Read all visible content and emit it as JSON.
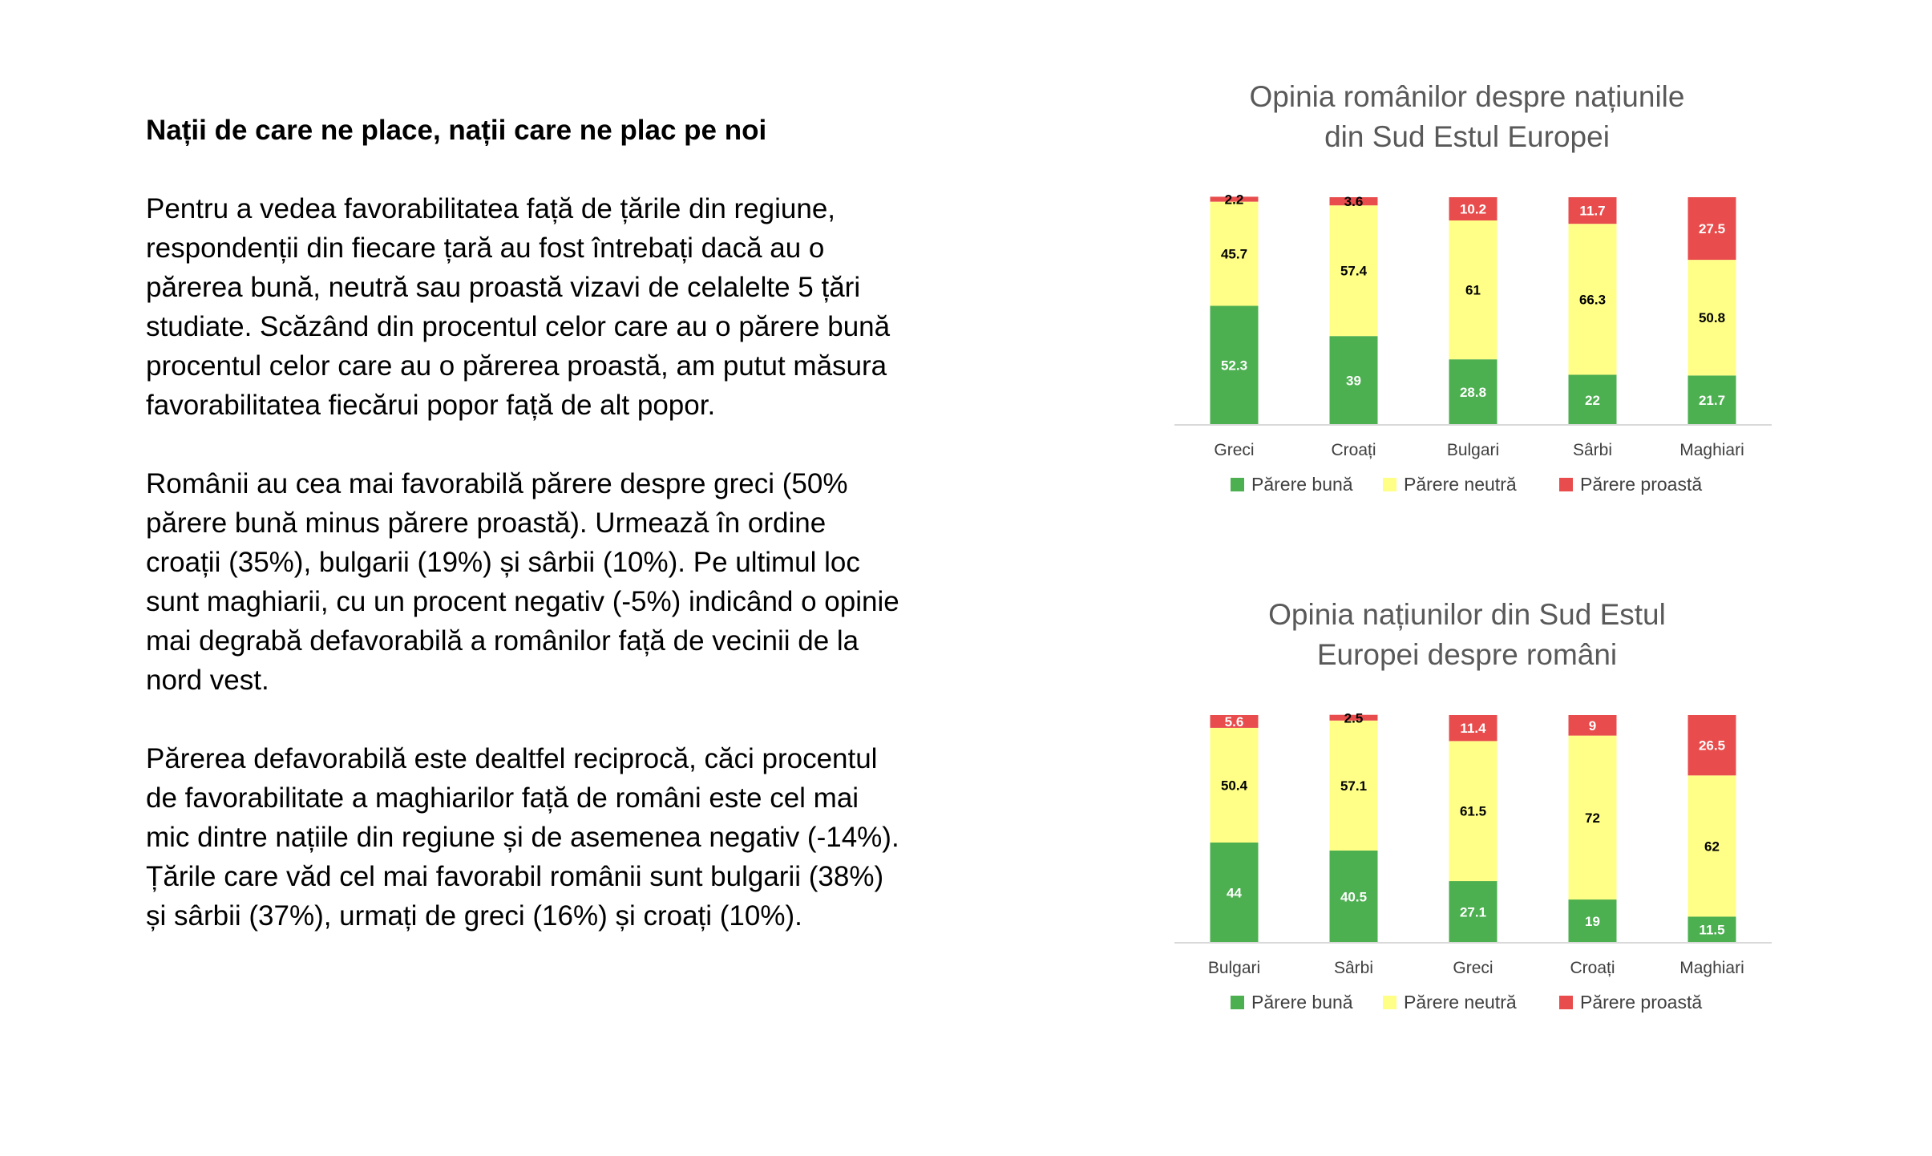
{
  "text": {
    "heading": "Nații de care ne place, nații care ne plac pe noi",
    "paragraphs": [
      "Pentru a vedea favorabilitatea față de țările din regiune, respondenții din fiecare țară au fost întrebați dacă au o părerea bună, neutră sau proastă vizavi de celalelte 5 țări studiate. Scăzând din procentul celor care au o părere bună procentul celor care au o părerea proastă, am putut măsura favorabilitatea fiecărui popor față de alt popor.",
      "Românii au cea mai favorabilă părere despre greci (50% părere bună minus părere proastă). Urmează în ordine croații (35%), bulgarii (19%) și sârbii (10%). Pe ultimul loc sunt maghiarii, cu un procent negativ (-5%) indicând o opinie mai degrabă defavorabilă a românilor față de vecinii de la nord vest.",
      "Părerea defavorabilă este dealtfel reciprocă, căci procentul de favorabilitate a maghiarilor față de români este cel mai mic dintre națiile din regiune și de asemenea negativ (-14%). Țările care văd cel mai favorabil românii sunt bulgarii (38%) și sârbii (37%), urmați de greci (16%) și croați (10%)."
    ]
  },
  "colors": {
    "good": "#4caf50",
    "neutral": "#ffff88",
    "bad": "#e84c4c",
    "title": "#595959",
    "axis": "#d9d9d9"
  },
  "chart_data": [
    {
      "type": "bar",
      "stacked": true,
      "title_lines": [
        "Opinia românilor despre națiunile",
        "din Sud Estul Europei"
      ],
      "categories": [
        "Greci",
        "Croați",
        "Bulgari",
        "Sârbi",
        "Maghiari"
      ],
      "series": [
        {
          "name": "Părere bună",
          "values": [
            52.3,
            39,
            28.8,
            22,
            21.7
          ]
        },
        {
          "name": "Părere neutră",
          "values": [
            45.7,
            57.4,
            61,
            66.3,
            50.8
          ]
        },
        {
          "name": "Părere proastă",
          "values": [
            2.2,
            3.6,
            10.2,
            11.7,
            27.5
          ]
        }
      ],
      "legend_position": "bottom",
      "grid": false
    },
    {
      "type": "bar",
      "stacked": true,
      "title_lines": [
        "Opinia națiunilor din Sud Estul",
        "Europei  despre români"
      ],
      "categories": [
        "Bulgari",
        "Sârbi",
        "Greci",
        "Croați",
        "Maghiari"
      ],
      "series": [
        {
          "name": "Părere bună",
          "values": [
            44,
            40.5,
            27.1,
            19,
            11.5
          ]
        },
        {
          "name": "Părere neutră",
          "values": [
            50.4,
            57.1,
            61.5,
            72,
            62
          ]
        },
        {
          "name": "Părere proastă",
          "values": [
            5.6,
            2.5,
            11.4,
            9,
            26.5
          ]
        }
      ],
      "legend_position": "bottom",
      "grid": false
    }
  ]
}
